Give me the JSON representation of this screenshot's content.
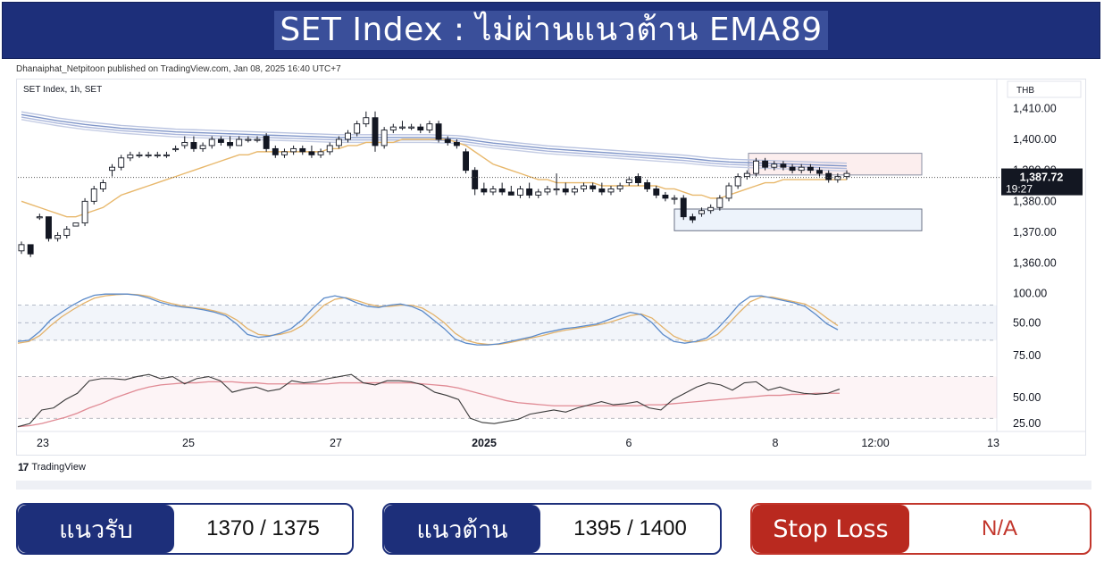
{
  "header": {
    "title": "SET Index : ไม่ผ่านแนวต้าน EMA89"
  },
  "attribution": "Dhanaiphat_Netpitoon published on TradingView.com, Jan 08, 2025 16:40 UTC+7",
  "footer_logo": "TradingView",
  "levels": {
    "support_label": "แนวรับ",
    "support_value": "1370 / 1375",
    "resistance_label": "แนวต้าน",
    "resistance_value": "1395 / 1400",
    "stoploss_label": "Stop Loss",
    "stoploss_value": "N/A"
  },
  "colors": {
    "navy": "#1d2f7a",
    "red": "#b9291f",
    "up": "#ffffff",
    "down": "#131722",
    "ema_fast": "#e8b86c",
    "ema_slow": "#7f95c8",
    "stoch_k": "#5b8ac9",
    "stoch_d": "#e3b26a",
    "rsi": "#3a3a3a",
    "rsi_ma": "#e08a94"
  },
  "chart_data": [
    {
      "type": "candlestick",
      "legend": "SET Index, 1h, SET",
      "currency": "THB",
      "x_ticks": [
        "23",
        "25",
        "27",
        "2025",
        "6",
        "8",
        "12:00",
        "13"
      ],
      "y_ticks": [
        1360,
        1370,
        1380,
        1390,
        1400,
        1410
      ],
      "ylim": [
        1355,
        1415
      ],
      "last_price": "1,387.72",
      "countdown": "19:27",
      "y_tick_labels": [
        "1,360.00",
        "1,370.00",
        "1,380.00",
        "1,390.00",
        "1,400.00",
        "1,410.00"
      ],
      "candles": [
        [
          1364,
          1367,
          1363,
          1366
        ],
        [
          1366,
          1366,
          1362,
          1363
        ],
        [
          1375,
          1376,
          1374,
          1375
        ],
        [
          1375,
          1375,
          1367,
          1368
        ],
        [
          1368,
          1370,
          1367,
          1369
        ],
        [
          1369,
          1372,
          1368,
          1371
        ],
        [
          1372,
          1373,
          1372,
          1373
        ],
        [
          1373,
          1381,
          1372,
          1380
        ],
        [
          1380,
          1385,
          1379,
          1384
        ],
        [
          1384,
          1387,
          1383,
          1386
        ],
        [
          1390,
          1392,
          1388,
          1391
        ],
        [
          1391,
          1395,
          1390,
          1394
        ],
        [
          1394,
          1396,
          1393,
          1395
        ],
        [
          1395,
          1396,
          1394,
          1395
        ],
        [
          1395,
          1396,
          1394,
          1395
        ],
        [
          1395,
          1396,
          1394,
          1395
        ],
        [
          1395,
          1396,
          1394,
          1395
        ],
        [
          1397,
          1398,
          1396,
          1397
        ],
        [
          1398,
          1401,
          1397,
          1399
        ],
        [
          1399,
          1401,
          1396,
          1397
        ],
        [
          1397,
          1399,
          1396,
          1398
        ],
        [
          1398,
          1401,
          1397,
          1400
        ],
        [
          1400,
          1401,
          1398,
          1399
        ],
        [
          1399,
          1401,
          1397,
          1398
        ],
        [
          1398,
          1401,
          1398,
          1400
        ],
        [
          1400,
          1401,
          1399,
          1400
        ],
        [
          1400,
          1401,
          1399,
          1400
        ],
        [
          1401,
          1402,
          1396,
          1397
        ],
        [
          1397,
          1398,
          1394,
          1395
        ],
        [
          1395,
          1397,
          1394,
          1396
        ],
        [
          1396,
          1398,
          1395,
          1397
        ],
        [
          1397,
          1398,
          1395,
          1396
        ],
        [
          1396,
          1398,
          1394,
          1395
        ],
        [
          1395,
          1397,
          1394,
          1396
        ],
        [
          1396,
          1399,
          1395,
          1398
        ],
        [
          1398,
          1401,
          1397,
          1400
        ],
        [
          1400,
          1403,
          1399,
          1402
        ],
        [
          1402,
          1406,
          1401,
          1405
        ],
        [
          1405,
          1409,
          1404,
          1407
        ],
        [
          1407,
          1409,
          1396,
          1398
        ],
        [
          1398,
          1404,
          1397,
          1403
        ],
        [
          1403,
          1405,
          1402,
          1404
        ],
        [
          1404,
          1406,
          1403,
          1404
        ],
        [
          1404,
          1405,
          1403,
          1404
        ],
        [
          1404,
          1405,
          1402,
          1403
        ],
        [
          1403,
          1406,
          1402,
          1405
        ],
        [
          1405,
          1406,
          1399,
          1400
        ],
        [
          1400,
          1401,
          1398,
          1399
        ],
        [
          1399,
          1400,
          1397,
          1398
        ],
        [
          1396,
          1397,
          1389,
          1390
        ],
        [
          1390,
          1391,
          1382,
          1384
        ],
        [
          1384,
          1386,
          1382,
          1383
        ],
        [
          1383,
          1385,
          1382,
          1384
        ],
        [
          1384,
          1386,
          1382,
          1383
        ],
        [
          1383,
          1385,
          1382,
          1382
        ],
        [
          1382,
          1385,
          1381,
          1384
        ],
        [
          1384,
          1386,
          1381,
          1382
        ],
        [
          1382,
          1384,
          1381,
          1383
        ],
        [
          1383,
          1385,
          1382,
          1384
        ],
        [
          1384,
          1389,
          1382,
          1384
        ],
        [
          1384,
          1386,
          1382,
          1383
        ],
        [
          1383,
          1385,
          1382,
          1384
        ],
        [
          1384,
          1386,
          1383,
          1385
        ],
        [
          1385,
          1386,
          1383,
          1384
        ],
        [
          1384,
          1386,
          1382,
          1383
        ],
        [
          1383,
          1385,
          1382,
          1384
        ],
        [
          1384,
          1386,
          1383,
          1385
        ],
        [
          1386,
          1388,
          1385,
          1387
        ],
        [
          1388,
          1389,
          1385,
          1386
        ],
        [
          1386,
          1387,
          1383,
          1384
        ],
        [
          1384,
          1385,
          1381,
          1382
        ],
        [
          1382,
          1383,
          1380,
          1381
        ],
        [
          1381,
          1382,
          1379,
          1381
        ],
        [
          1381,
          1382,
          1374,
          1375
        ],
        [
          1375,
          1376,
          1373,
          1374
        ],
        [
          1376,
          1378,
          1375,
          1377
        ],
        [
          1377,
          1379,
          1376,
          1378
        ],
        [
          1378,
          1382,
          1377,
          1381
        ],
        [
          1381,
          1386,
          1380,
          1385
        ],
        [
          1385,
          1389,
          1384,
          1388
        ],
        [
          1388,
          1390,
          1387,
          1389
        ],
        [
          1389,
          1394,
          1388,
          1393
        ],
        [
          1393,
          1394,
          1390,
          1391
        ],
        [
          1391,
          1393,
          1390,
          1392
        ],
        [
          1392,
          1393,
          1390,
          1391
        ],
        [
          1391,
          1392,
          1389,
          1390
        ],
        [
          1390,
          1392,
          1389,
          1391
        ],
        [
          1391,
          1392,
          1389,
          1390
        ],
        [
          1390,
          1391,
          1388,
          1389
        ],
        [
          1389,
          1390,
          1386,
          1387
        ],
        [
          1387,
          1389,
          1386,
          1388
        ],
        [
          1388,
          1390,
          1387,
          1389
        ]
      ],
      "ema_fast": [
        1380,
        1379,
        1378,
        1377,
        1376,
        1375,
        1375,
        1376,
        1377,
        1378,
        1380,
        1382,
        1383,
        1384,
        1385,
        1386,
        1387,
        1388,
        1389,
        1390,
        1391,
        1392,
        1393,
        1394,
        1395,
        1395,
        1396,
        1396,
        1396,
        1396,
        1396,
        1396,
        1396,
        1396,
        1397,
        1397,
        1398,
        1398,
        1399,
        1399,
        1399,
        1399,
        1400,
        1400,
        1400,
        1400,
        1400,
        1400,
        1399,
        1398,
        1396,
        1394,
        1392,
        1391,
        1390,
        1389,
        1388,
        1387,
        1387,
        1386,
        1386,
        1386,
        1386,
        1386,
        1385,
        1385,
        1385,
        1385,
        1385,
        1385,
        1385,
        1384,
        1384,
        1383,
        1382,
        1382,
        1381,
        1381,
        1382,
        1383,
        1384,
        1385,
        1386,
        1386,
        1387,
        1387,
        1387,
        1387,
        1387,
        1387,
        1387,
        1387
      ],
      "ema_slow": [
        1408,
        1407.5,
        1407,
        1406.5,
        1406,
        1405.6,
        1405.2,
        1404.8,
        1404.5,
        1404.2,
        1403.9,
        1403.6,
        1403.4,
        1403.2,
        1403,
        1402.8,
        1402.6,
        1402.4,
        1402.3,
        1402.2,
        1402.1,
        1402,
        1401.9,
        1401.8,
        1401.7,
        1401.6,
        1401.5,
        1401.4,
        1401.3,
        1401.2,
        1401.1,
        1401,
        1400.9,
        1400.8,
        1400.7,
        1400.6,
        1400.6,
        1400.6,
        1400.6,
        1400.6,
        1400.6,
        1400.6,
        1400.6,
        1400.6,
        1400.6,
        1400.6,
        1400.5,
        1400.4,
        1400.3,
        1400,
        1399.6,
        1399.2,
        1398.8,
        1398.5,
        1398.2,
        1397.9,
        1397.6,
        1397.3,
        1397,
        1396.8,
        1396.6,
        1396.4,
        1396.2,
        1396,
        1395.8,
        1395.6,
        1395.4,
        1395.2,
        1395,
        1394.8,
        1394.6,
        1394.4,
        1394.2,
        1394,
        1393.7,
        1393.4,
        1393.1,
        1392.9,
        1392.7,
        1392.6,
        1392.5,
        1392.4,
        1392.3,
        1392.2,
        1392.1,
        1392,
        1391.9,
        1391.8,
        1391.7,
        1391.6,
        1391.5,
        1391.4
      ],
      "support_zone": [
        1370.5,
        1377.5
      ],
      "resistance_zone": [
        1388.5,
        1395.5
      ]
    },
    {
      "type": "line",
      "indicator": "stochastic",
      "y_ticks": [
        50,
        100
      ],
      "y_tick_labels": [
        "50.00",
        "100.00"
      ],
      "overlapping_tick_label": "75.00",
      "ylim": [
        0,
        110
      ],
      "levels": [
        80,
        50,
        20
      ],
      "k": [
        18,
        20,
        35,
        55,
        68,
        80,
        90,
        97,
        99,
        99,
        99,
        97,
        92,
        85,
        80,
        77,
        75,
        72,
        68,
        62,
        48,
        30,
        25,
        27,
        32,
        40,
        55,
        75,
        92,
        96,
        92,
        84,
        78,
        76,
        80,
        82,
        78,
        70,
        55,
        40,
        22,
        15,
        12,
        12,
        14,
        18,
        22,
        26,
        32,
        36,
        40,
        42,
        45,
        48,
        55,
        62,
        68,
        64,
        50,
        30,
        18,
        15,
        18,
        24,
        40,
        60,
        82,
        95,
        96,
        92,
        88,
        84,
        78,
        64,
        48,
        38
      ],
      "d": [
        15,
        18,
        28,
        45,
        60,
        72,
        83,
        92,
        96,
        98,
        99,
        98,
        95,
        88,
        83,
        79,
        76,
        74,
        70,
        65,
        55,
        40,
        30,
        28,
        30,
        35,
        45,
        62,
        80,
        90,
        93,
        88,
        82,
        78,
        78,
        80,
        80,
        75,
        64,
        50,
        32,
        20,
        15,
        13,
        13,
        16,
        20,
        24,
        28,
        33,
        37,
        40,
        43,
        46,
        50,
        56,
        62,
        65,
        58,
        42,
        27,
        19,
        17,
        20,
        30,
        48,
        68,
        86,
        94,
        94,
        90,
        86,
        82,
        72,
        58,
        45
      ]
    },
    {
      "type": "line",
      "indicator": "rsi",
      "y_ticks": [
        25,
        50
      ],
      "y_tick_labels": [
        "25.00",
        "50.00"
      ],
      "ylim": [
        20,
        85
      ],
      "levels": [
        70,
        30
      ],
      "rsi": [
        22,
        25,
        38,
        40,
        48,
        54,
        66,
        68,
        68,
        67,
        70,
        72,
        68,
        70,
        63,
        68,
        70,
        66,
        55,
        58,
        60,
        56,
        58,
        66,
        64,
        65,
        68,
        70,
        72,
        64,
        62,
        66,
        66,
        65,
        62,
        55,
        52,
        48,
        30,
        26,
        25,
        27,
        29,
        34,
        36,
        38,
        36,
        40,
        43,
        46,
        43,
        44,
        46,
        40,
        38,
        48,
        54,
        60,
        64,
        62,
        57,
        64,
        65,
        57,
        60,
        56,
        54,
        53,
        54,
        58
      ],
      "rsi_ma": [
        22,
        23,
        25,
        28,
        31,
        35,
        40,
        44,
        49,
        53,
        57,
        60,
        62,
        63,
        64,
        64,
        65,
        65,
        65,
        64,
        64,
        63,
        63,
        63,
        63,
        63,
        63,
        64,
        64,
        64,
        64,
        64,
        64,
        64,
        63,
        62,
        61,
        59,
        56,
        53,
        50,
        47,
        45,
        44,
        43,
        42,
        42,
        42,
        42,
        42,
        42,
        42,
        42,
        43,
        43,
        44,
        45,
        46,
        47,
        48,
        49,
        50,
        51,
        52,
        52,
        53,
        53,
        54,
        54,
        54
      ]
    }
  ]
}
